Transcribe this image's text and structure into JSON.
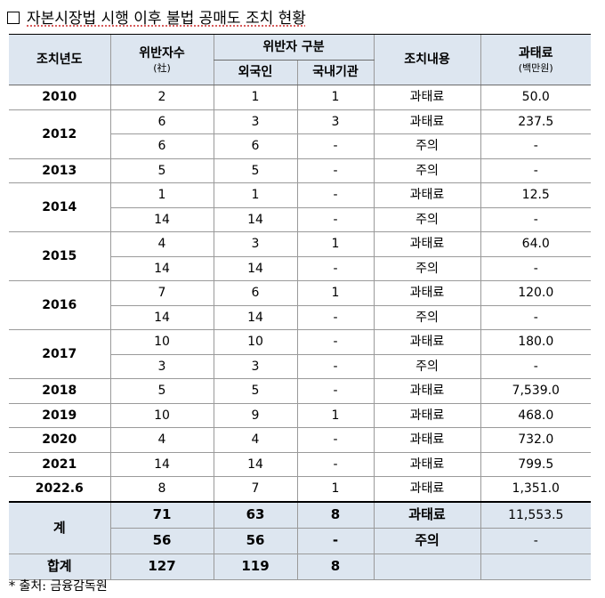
{
  "title": "자본시장법 시행 이후 불법 공매도 조치 현황",
  "header": {
    "year": "조치년도",
    "violators": "위반자수",
    "violators_unit": "(社)",
    "category": "위반자 구분",
    "foreign": "외국인",
    "domestic": "국내기관",
    "action": "조치내용",
    "fine": "과태료",
    "fine_unit": "(백만원)"
  },
  "rows": [
    {
      "year": "2010",
      "c": "2",
      "f": "1",
      "d": "1",
      "a": "과태료",
      "m": "50.0"
    },
    {
      "year": "2012",
      "c": "6",
      "f": "3",
      "d": "3",
      "a": "과태료",
      "m": "237.5"
    },
    {
      "c": "6",
      "f": "6",
      "d": "-",
      "a": "주의",
      "m": "-"
    },
    {
      "year": "2013",
      "c": "5",
      "f": "5",
      "d": "-",
      "a": "주의",
      "m": "-"
    },
    {
      "year": "2014",
      "c": "1",
      "f": "1",
      "d": "-",
      "a": "과태료",
      "m": "12.5"
    },
    {
      "c": "14",
      "f": "14",
      "d": "-",
      "a": "주의",
      "m": "-"
    },
    {
      "year": "2015",
      "c": "4",
      "f": "3",
      "d": "1",
      "a": "과태료",
      "m": "64.0"
    },
    {
      "c": "14",
      "f": "14",
      "d": "-",
      "a": "주의",
      "m": "-"
    },
    {
      "year": "2016",
      "c": "7",
      "f": "6",
      "d": "1",
      "a": "과태료",
      "m": "120.0"
    },
    {
      "c": "14",
      "f": "14",
      "d": "-",
      "a": "주의",
      "m": "-"
    },
    {
      "year": "2017",
      "c": "10",
      "f": "10",
      "d": "-",
      "a": "과태료",
      "m": "180.0"
    },
    {
      "c": "3",
      "f": "3",
      "d": "-",
      "a": "주의",
      "m": "-"
    },
    {
      "year": "2018",
      "c": "5",
      "f": "5",
      "d": "-",
      "a": "과태료",
      "m": "7,539.0"
    },
    {
      "year": "2019",
      "c": "10",
      "f": "9",
      "d": "1",
      "a": "과태료",
      "m": "468.0"
    },
    {
      "year": "2020",
      "c": "4",
      "f": "4",
      "d": "-",
      "a": "과태료",
      "m": "732.0"
    },
    {
      "year": "2021",
      "c": "14",
      "f": "14",
      "d": "-",
      "a": "과태료",
      "m": "799.5"
    },
    {
      "year": "2022.6",
      "c": "8",
      "f": "7",
      "d": "1",
      "a": "과태료",
      "m": "1,351.0"
    }
  ],
  "totals": {
    "label": "계",
    "r1": {
      "c": "71",
      "f": "63",
      "d": "8",
      "a": "과태료",
      "m": "11,553.5"
    },
    "r2": {
      "c": "56",
      "f": "56",
      "d": "-",
      "a": "주의",
      "m": "-"
    }
  },
  "grand": {
    "label": "합계",
    "c": "127",
    "f": "119",
    "d": "8"
  },
  "footnote": "* 출처: 금융감독원"
}
